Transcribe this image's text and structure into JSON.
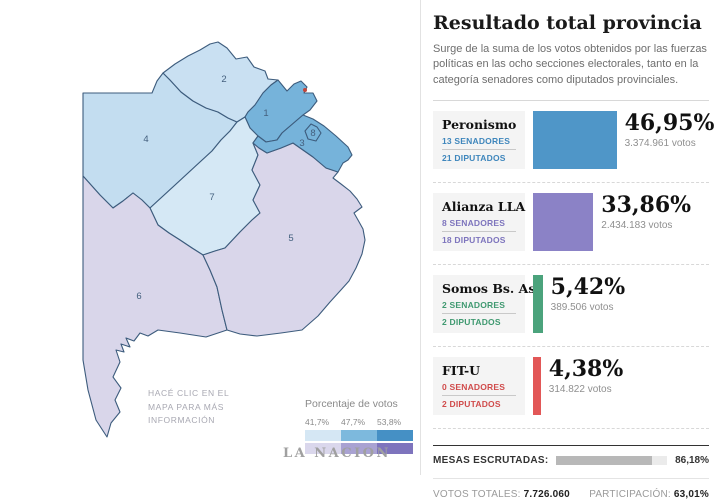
{
  "panel": {
    "title": "Resultado total provincia",
    "subtitle": "Surge de la suma de los votos obtenidos por las fuerzas políticas en las ocho secciones electorales, tanto en la categoría senadores como diputados provinciales.",
    "parties": [
      {
        "name": "Peronismo",
        "senators": "13 SENADORES",
        "deputies": "21 DIPUTADOS",
        "pct": "46,95%",
        "pct_value": 46.95,
        "votes": "3.374.961 votos",
        "bar_color": "#4f96c8",
        "accent": "#3e86bc"
      },
      {
        "name": "Alianza LLA",
        "senators": "8 SENADORES",
        "deputies": "18 DIPUTADOS",
        "pct": "33,86%",
        "pct_value": 33.86,
        "votes": "2.434.183 votos",
        "bar_color": "#8b82c6",
        "accent": "#7d74bd"
      },
      {
        "name": "Somos Bs. As.",
        "senators": "2 SENADORES",
        "deputies": "2 DIPUTADOS",
        "pct": "5,42%",
        "pct_value": 5.42,
        "votes": "389.506 votos",
        "bar_color": "#4ba37c",
        "accent": "#3f9970"
      },
      {
        "name": "FIT-U",
        "senators": "0 SENADORES",
        "deputies": "2 DIPUTADOS",
        "pct": "4,38%",
        "pct_value": 4.38,
        "votes": "314.822 votos",
        "bar_color": "#e25757",
        "accent": "#d04b4b"
      }
    ],
    "mesas": {
      "label": "MESAS ESCRUTADAS:",
      "value": "86,18%",
      "pct": 86.18
    },
    "totals": {
      "votes_label": "VOTOS TOTALES:",
      "votes_value": "7.726.060",
      "participation_label": "PARTICIPACIÓN:",
      "participation_value": "63,01%"
    }
  },
  "map": {
    "hint_lines": {
      "0": "HACÉ CLIC EN EL",
      "1": "MAPA PARA MÁS",
      "2": "INFORMACIÓN"
    },
    "logo": "LA NACION",
    "marker_color": "#c0453a",
    "legend": {
      "title": "Porcentaje de votos",
      "ticks": [
        "41,7%",
        "47,7%",
        "53,8%"
      ],
      "blue_ramp": [
        "#d5e7f4",
        "#7db9dd",
        "#4590c5"
      ],
      "purple_ramp": [
        "#dad7ec",
        "#a9a2d2",
        "#7e74bd"
      ]
    },
    "sections": [
      {
        "id": "1",
        "label": "1",
        "color": "#76b3da"
      },
      {
        "id": "2",
        "label": "2",
        "color": "#c9e0f2"
      },
      {
        "id": "3",
        "label": "3",
        "color": "#76b3da"
      },
      {
        "id": "4",
        "label": "4",
        "color": "#c3ddf0"
      },
      {
        "id": "5",
        "label": "5",
        "color": "#d9d6ea"
      },
      {
        "id": "6",
        "label": "6",
        "color": "#d9d6ea"
      },
      {
        "id": "7",
        "label": "7",
        "color": "#d5e8f5"
      },
      {
        "id": "8",
        "label": "8",
        "color": "#76b3da"
      }
    ]
  },
  "chart_data": {
    "type": "bar",
    "title": "Resultado total provincia",
    "categories": [
      "Peronismo",
      "Alianza LLA",
      "Somos Bs. As.",
      "FIT-U"
    ],
    "values": [
      46.95,
      33.86,
      5.42,
      4.38
    ],
    "units": "%",
    "votes": [
      3374961,
      2434183,
      389506,
      314822
    ],
    "senators": [
      13,
      8,
      2,
      0
    ],
    "deputies": [
      21,
      18,
      2,
      2
    ],
    "mesas_escrutadas_pct": 86.18,
    "votos_totales": 7726060,
    "participacion_pct": 63.01,
    "map_legend_thresholds_pct": [
      41.7,
      47.7,
      53.8
    ],
    "legend_position": "bottom-left of map",
    "grid": false
  }
}
